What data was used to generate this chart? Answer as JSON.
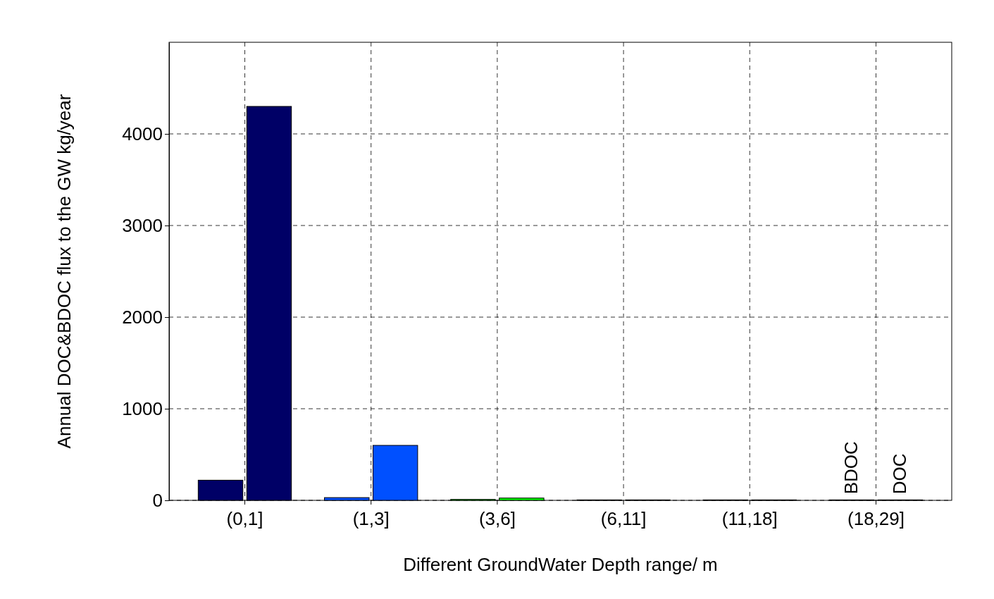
{
  "chart_data": {
    "type": "bar",
    "xlabel": "Different GroundWater Depth range/ m",
    "ylabel": "Annual DOC&BDOC flux to the GW kg/year",
    "categories": [
      "(0,1]",
      "(1,3]",
      "(3,6]",
      "(6,11]",
      "(11,18]",
      "(18,29]"
    ],
    "series": [
      {
        "name": "BDOC",
        "colors": [
          "#000066",
          "#0050ff",
          "#00ff00",
          "#eeff11",
          "#ff9900",
          "#ff0000"
        ],
        "values": [
          220,
          30,
          10,
          5,
          5,
          5
        ]
      },
      {
        "name": "DOC",
        "colors": [
          "#000066",
          "#0050ff",
          "#00ff00",
          "#eeff11",
          "#ff9900",
          "#ff0000"
        ],
        "values": [
          4300,
          600,
          25,
          5,
          5,
          5
        ]
      }
    ],
    "ylim": [
      0,
      5000
    ],
    "yticks": [
      0,
      1000,
      2000,
      3000,
      4000
    ],
    "grid": true
  }
}
